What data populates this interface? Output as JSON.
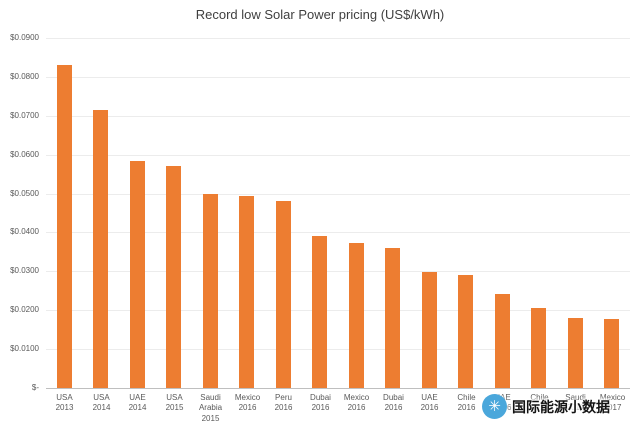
{
  "chart_data": {
    "type": "bar",
    "title": "Record low Solar Power pricing (US$/kWh)",
    "categories": [
      "USA",
      "USA",
      "UAE",
      "USA",
      "Saudi Arabia",
      "Mexico",
      "Peru",
      "Dubai",
      "Mexico",
      "Dubai",
      "UAE",
      "Chile",
      "UAE",
      "Chile",
      "Saudi",
      "Mexico"
    ],
    "years": [
      "2013",
      "2014",
      "2014",
      "2015",
      "2015",
      "2016",
      "2016",
      "2016",
      "2016",
      "2016",
      "2016",
      "2016",
      "2016",
      "2017",
      "2017",
      "2017"
    ],
    "values": [
      0.083,
      0.0715,
      0.0585,
      0.057,
      0.0498,
      0.0495,
      0.048,
      0.039,
      0.0372,
      0.036,
      0.0299,
      0.0291,
      0.0242,
      0.0206,
      0.0179,
      0.0177
    ],
    "xlabel": "",
    "ylabel": "",
    "ylim": [
      0,
      0.09
    ],
    "grid": true,
    "legend": "none",
    "bar_color": "#ED7D31",
    "y_ticks": [
      {
        "label": "$0.0900",
        "value": 0.09
      },
      {
        "label": "$0.0800",
        "value": 0.08
      },
      {
        "label": "$0.0700",
        "value": 0.07
      },
      {
        "label": "$0.0600",
        "value": 0.06
      },
      {
        "label": "$0.0500",
        "value": 0.05
      },
      {
        "label": "$0.0400",
        "value": 0.04
      },
      {
        "label": "$0.0300",
        "value": 0.03
      },
      {
        "label": "$0.0200",
        "value": 0.02
      },
      {
        "label": "$0.0100",
        "value": 0.01
      },
      {
        "label": "$-",
        "value": 0
      }
    ]
  },
  "watermark": {
    "logo_glyph": "✳",
    "text": "国际能源小数据"
  }
}
